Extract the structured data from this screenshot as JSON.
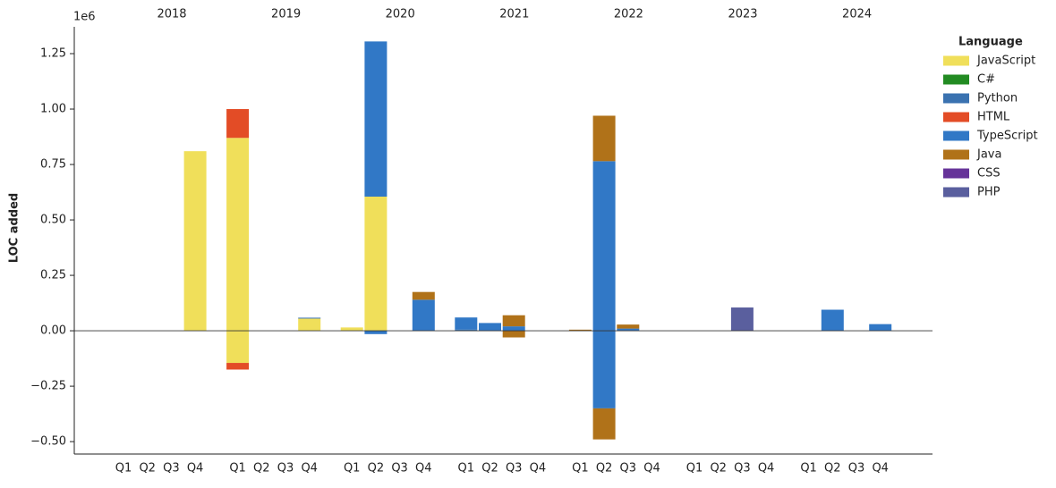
{
  "chart_data": {
    "type": "stacked_bar",
    "y_label": "LOC added",
    "y_offset_label": "1e6",
    "legend_title": "Language",
    "legend_position": "right",
    "groups": [
      "2018",
      "2019",
      "2020",
      "2021",
      "2022",
      "2023",
      "2024"
    ],
    "categories": [
      "Q1",
      "Q2",
      "Q3",
      "Q4",
      "Q1",
      "Q2",
      "Q3",
      "Q4",
      "Q1",
      "Q2",
      "Q3",
      "Q4",
      "Q1",
      "Q2",
      "Q3",
      "Q4",
      "Q1",
      "Q2",
      "Q3",
      "Q4",
      "Q1",
      "Q2",
      "Q3",
      "Q4",
      "Q1",
      "Q2",
      "Q3",
      "Q4"
    ],
    "ylim": [
      -0.556,
      1.371
    ],
    "yticks": [
      {
        "value": -0.5,
        "label": "−0.50"
      },
      {
        "value": -0.25,
        "label": "−0.25"
      },
      {
        "value": 0,
        "label": "0.00"
      },
      {
        "value": 0.25,
        "label": "0.25"
      },
      {
        "value": 0.5,
        "label": "0.50"
      },
      {
        "value": 0.75,
        "label": "0.75"
      },
      {
        "value": 1,
        "label": "1.00"
      },
      {
        "value": 1.25,
        "label": "1.25"
      }
    ],
    "series": [
      {
        "name": "JavaScript",
        "color": "#f0df5a",
        "values": [
          0,
          0,
          0,
          0.81,
          0.87,
          0,
          0,
          0.055,
          0.015,
          0.605,
          0,
          0,
          0,
          0,
          0,
          0,
          0,
          0,
          0,
          0,
          0,
          0,
          0,
          0,
          0,
          0,
          0,
          0
        ],
        "negative_values": [
          0,
          0,
          0,
          0,
          -0.145,
          0,
          0,
          0,
          0,
          0,
          0,
          0,
          0,
          0,
          0,
          0,
          0,
          0,
          0,
          0,
          0,
          0,
          0,
          0,
          0,
          0,
          0,
          0
        ]
      },
      {
        "name": "C#",
        "color": "#228b22",
        "values": [
          0,
          0,
          0,
          0,
          0,
          0,
          0,
          0,
          0,
          0,
          0,
          0,
          0,
          0,
          0,
          0,
          0,
          0,
          0,
          0,
          0,
          0,
          0,
          0,
          0,
          0,
          0,
          0
        ],
        "negative_values": [
          0,
          0,
          0,
          0,
          0,
          0,
          0,
          0,
          0,
          0,
          0,
          0,
          0,
          0,
          0,
          0,
          0,
          0,
          0,
          0,
          0,
          0,
          0,
          0,
          0,
          0,
          0,
          0
        ]
      },
      {
        "name": "Python",
        "color": "#3a72b0",
        "values": [
          0,
          0,
          0,
          0,
          0,
          0,
          0,
          0.004,
          0,
          0,
          0,
          0,
          0.005,
          0,
          0,
          0,
          0,
          0,
          0,
          0,
          0,
          0,
          0,
          0,
          0,
          0,
          0,
          0
        ],
        "negative_values": [
          0,
          0,
          0,
          0,
          0,
          0,
          0,
          0,
          0,
          0,
          0,
          0,
          0,
          0,
          0,
          0,
          0,
          0,
          0,
          0,
          0,
          0,
          0,
          0,
          0,
          0,
          0,
          0
        ]
      },
      {
        "name": "HTML",
        "color": "#e34c26",
        "values": [
          0,
          0,
          0,
          0,
          0.13,
          0,
          0,
          0,
          0,
          0,
          0,
          0,
          0,
          0,
          0,
          0,
          0,
          0,
          0,
          0,
          0,
          0,
          0,
          0,
          0,
          0,
          0,
          0
        ],
        "negative_values": [
          0,
          0,
          0,
          0,
          -0.03,
          0,
          0,
          0,
          0,
          0,
          0,
          0,
          0,
          0,
          0,
          0,
          0,
          0,
          0,
          0,
          0,
          0,
          0,
          0,
          0,
          0,
          0,
          0
        ]
      },
      {
        "name": "TypeScript",
        "color": "#3178c6",
        "values": [
          0,
          0,
          0,
          0,
          0,
          0,
          0,
          0,
          0,
          0.7,
          0,
          0.14,
          0.055,
          0.035,
          0.02,
          0,
          0,
          0.765,
          0.01,
          0,
          0,
          0,
          0,
          0,
          0,
          0.095,
          0,
          0.03
        ],
        "negative_values": [
          0,
          0,
          0,
          0,
          0,
          0,
          0,
          0,
          0,
          -0.015,
          0,
          0,
          0,
          0,
          0,
          0,
          0,
          -0.35,
          0,
          0,
          0,
          0,
          0,
          0,
          0,
          0,
          0,
          0
        ]
      },
      {
        "name": "Java",
        "color": "#b07219",
        "values": [
          0,
          0,
          0,
          0,
          0,
          0,
          0,
          0,
          0,
          0,
          0,
          0.035,
          0,
          0,
          0.05,
          0,
          0.005,
          0.205,
          0.018,
          0,
          0,
          0,
          0,
          0,
          0,
          0,
          0,
          0
        ],
        "negative_values": [
          0,
          0,
          0,
          0,
          0,
          0,
          0,
          0,
          0,
          0,
          0,
          0,
          0,
          0,
          -0.03,
          0,
          0,
          -0.14,
          0,
          0,
          0,
          0,
          0,
          0,
          0,
          0,
          0,
          0
        ]
      },
      {
        "name": "CSS",
        "color": "#663399",
        "values": [
          0,
          0,
          0,
          0,
          0,
          0,
          0,
          0,
          0,
          0,
          0,
          0,
          0,
          0,
          0,
          0,
          0,
          0,
          0,
          0,
          0,
          0,
          0,
          0,
          0,
          0,
          0,
          0
        ],
        "negative_values": [
          0,
          0,
          0,
          0,
          0,
          0,
          0,
          0,
          0,
          0,
          0,
          0,
          0,
          0,
          0,
          0,
          0,
          0,
          0,
          0,
          0,
          0,
          0,
          0,
          0,
          0,
          0,
          0
        ]
      },
      {
        "name": "PHP",
        "color": "#5a5f9e",
        "values": [
          0,
          0,
          0,
          0,
          0,
          0,
          0,
          0,
          0,
          0,
          0,
          0,
          0,
          0,
          0,
          0,
          0,
          0,
          0,
          0,
          0,
          0,
          0.105,
          0,
          0,
          0,
          0,
          0
        ],
        "negative_values": [
          0,
          0,
          0,
          0,
          0,
          0,
          0,
          0,
          0,
          0,
          0,
          0,
          0,
          0,
          0,
          0,
          0,
          0,
          0,
          0,
          0,
          0,
          0,
          0,
          0,
          0,
          0,
          0
        ]
      }
    ]
  }
}
